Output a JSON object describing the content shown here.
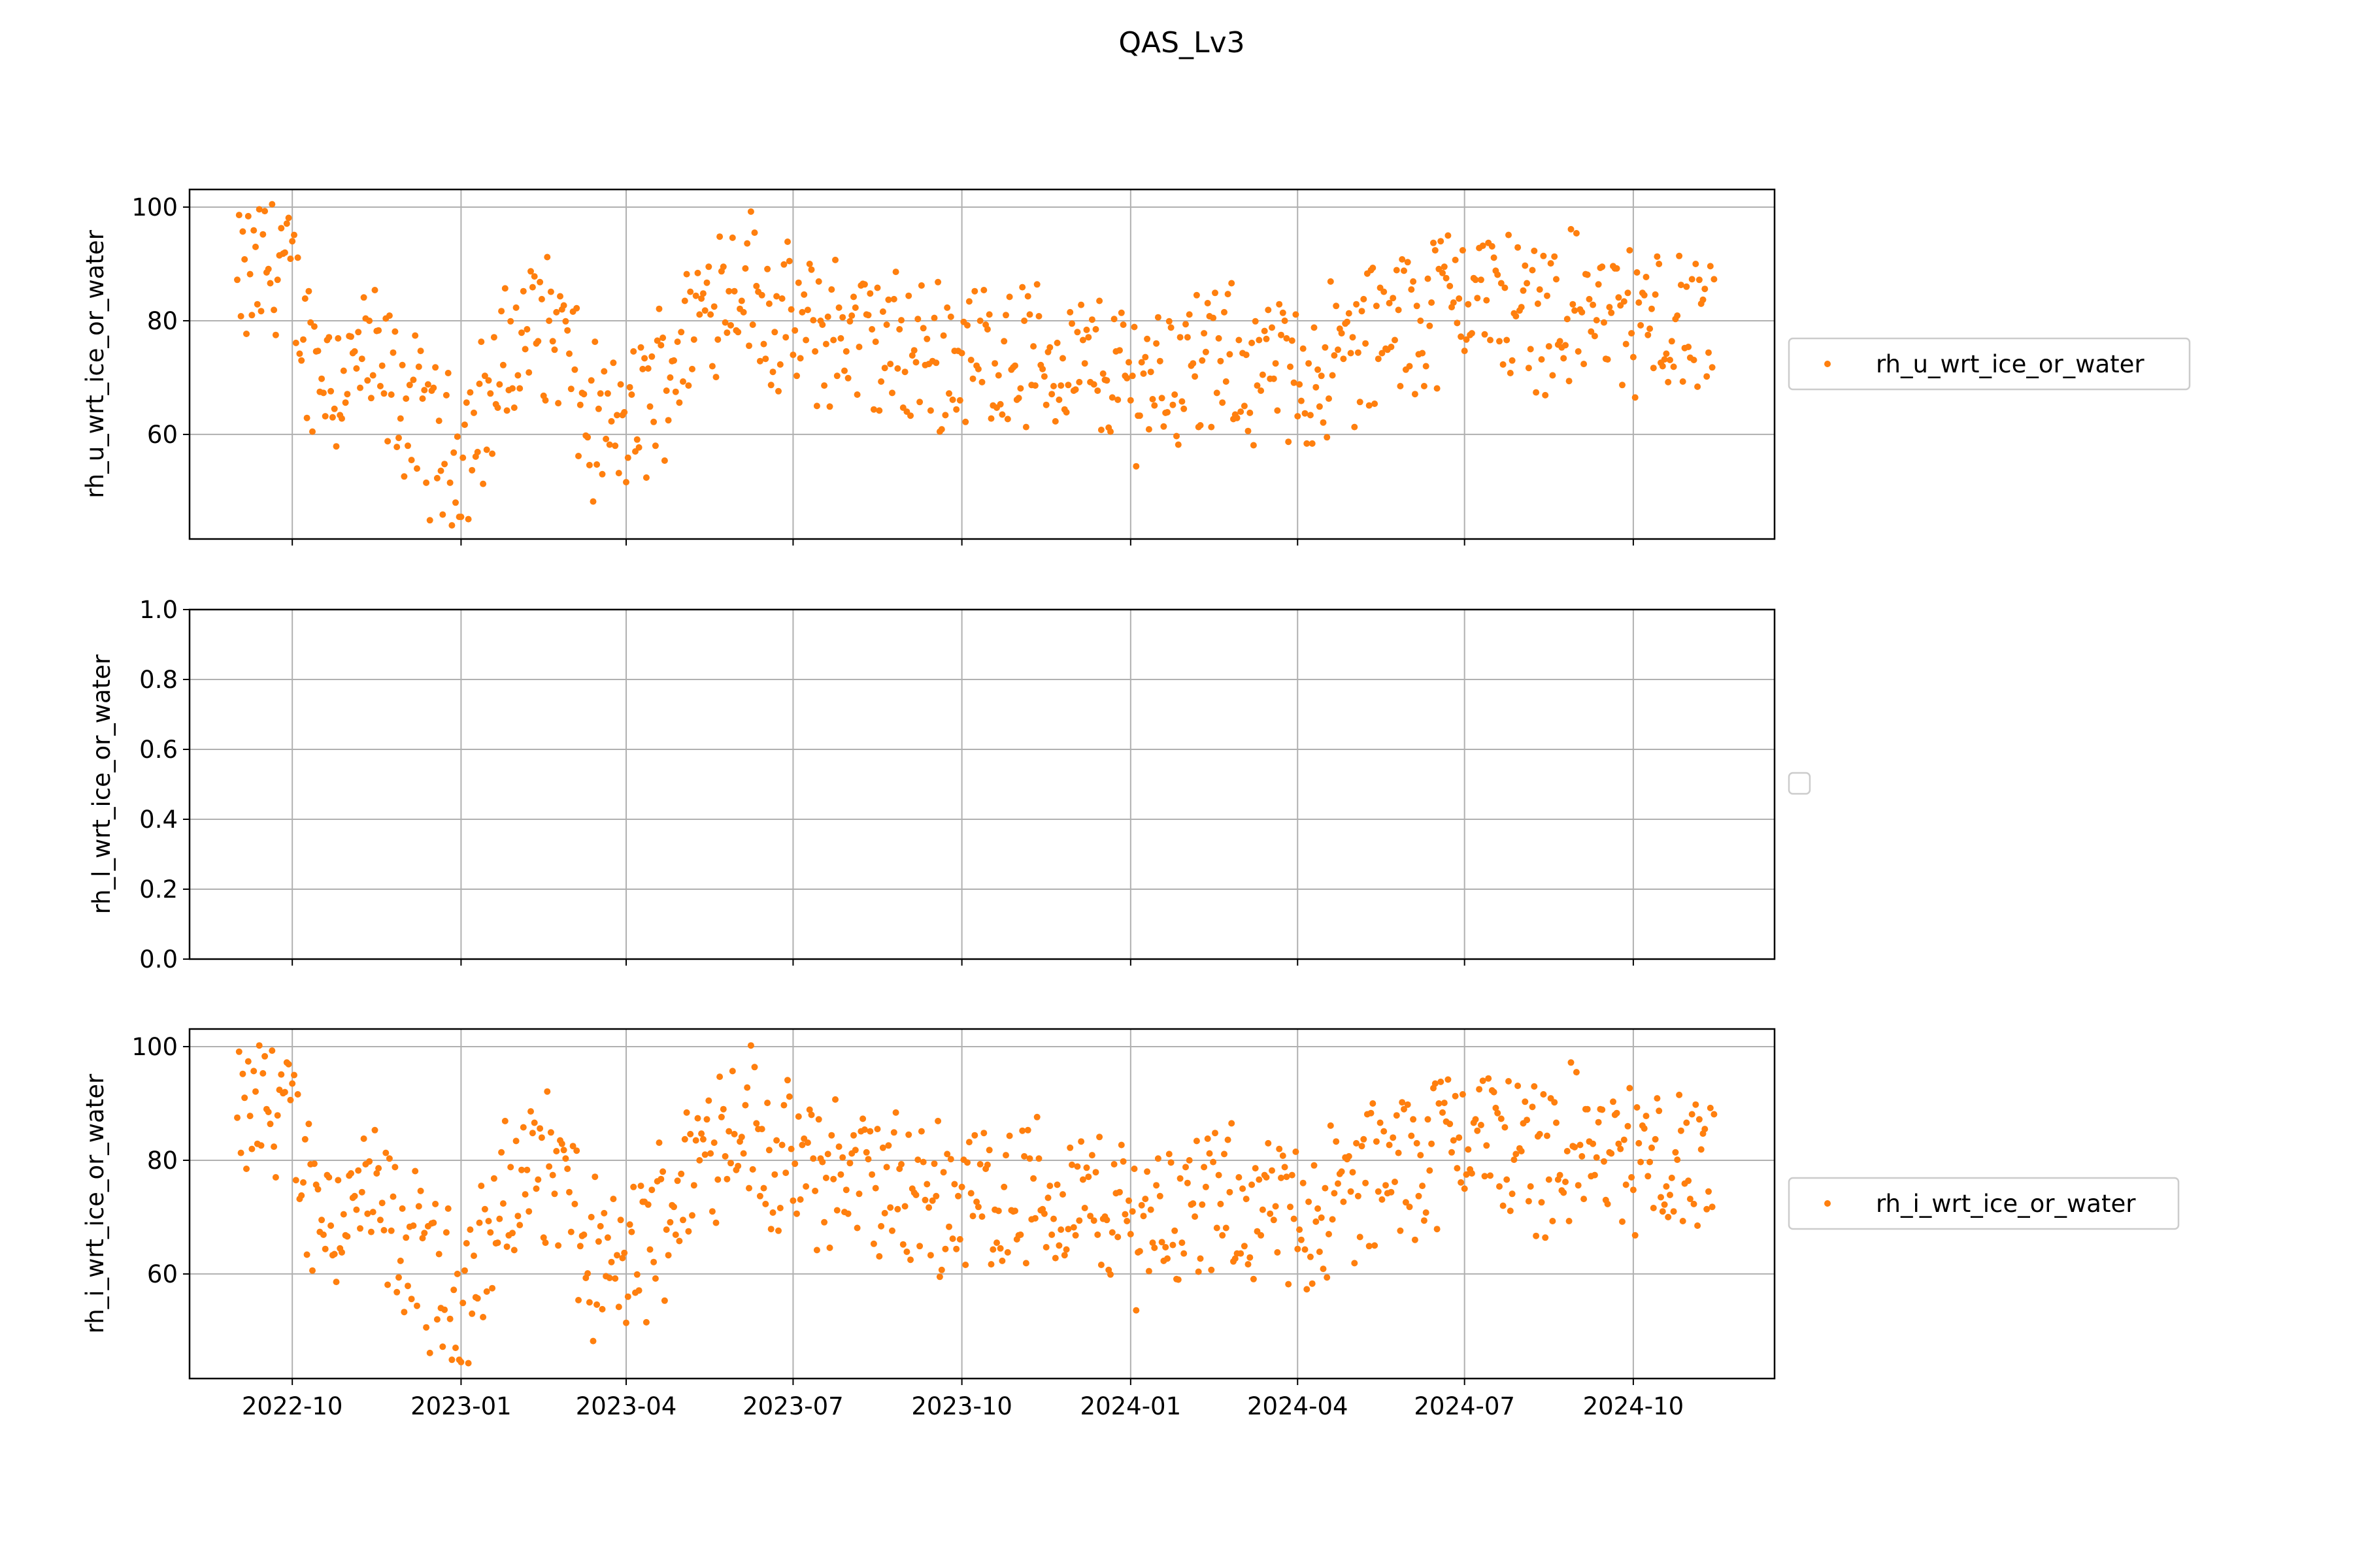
{
  "title": "QAS_Lv3",
  "marker_color": "#ff7f0e",
  "chart_data": [
    {
      "type": "scatter",
      "ylabel": "rh_u_wrt_ice_or_water",
      "legend": [
        "rh_u_wrt_ice_or_water"
      ],
      "legend_placement": "right",
      "grid": true,
      "xlim": [
        "2022-08-06",
        "2024-12-17"
      ],
      "ylim": [
        41.6,
        103.1
      ],
      "yticks": [
        60,
        80,
        100
      ],
      "xticks": [
        "2022-10-01",
        "2023-01-01",
        "2023-04-01",
        "2023-07-01",
        "2023-10-01",
        "2024-01-01",
        "2024-04-01",
        "2024-07-01",
        "2024-10-01"
      ],
      "xtick_labels": [
        "2022-10",
        "2023-01",
        "2023-04",
        "2023-07",
        "2023-10",
        "2024-01",
        "2024-04",
        "2024-07",
        "2024-10"
      ],
      "series": [
        {
          "name": "rh_u_wrt_ice_or_water",
          "x": [],
          "y": []
        }
      ]
    },
    {
      "type": "scatter",
      "ylabel": "rh_l_wrt_ice_or_water",
      "legend": [],
      "legend_placement": "right",
      "grid": true,
      "xlim": [
        "2022-08-06",
        "2024-12-17"
      ],
      "ylim": [
        0.0,
        1.0
      ],
      "yticks": [
        0.0,
        0.2,
        0.4,
        0.6,
        0.8,
        1.0
      ],
      "ytick_labels": [
        "0.0",
        "0.2",
        "0.4",
        "0.6",
        "0.8",
        "1.0"
      ],
      "xticks": [
        "2022-10-01",
        "2023-01-01",
        "2023-04-01",
        "2023-07-01",
        "2023-10-01",
        "2024-01-01",
        "2024-04-01",
        "2024-07-01",
        "2024-10-01"
      ],
      "series": []
    },
    {
      "type": "scatter",
      "ylabel": "rh_i_wrt_ice_or_water",
      "legend": [
        "rh_i_wrt_ice_or_water"
      ],
      "legend_placement": "right",
      "grid": true,
      "xlim": [
        "2022-08-06",
        "2024-12-17"
      ],
      "ylim": [
        41.6,
        103.1
      ],
      "yticks": [
        60,
        80,
        100
      ],
      "xticks": [
        "2022-10-01",
        "2023-01-01",
        "2023-04-01",
        "2023-07-01",
        "2023-10-01",
        "2024-01-01",
        "2024-04-01",
        "2024-07-01",
        "2024-10-01"
      ],
      "xtick_labels": [
        "2022-10",
        "2023-01",
        "2023-04",
        "2023-07",
        "2023-10",
        "2024-01",
        "2024-04",
        "2024-07",
        "2024-10"
      ],
      "series": [
        {
          "name": "rh_i_wrt_ice_or_water",
          "x": [],
          "y": []
        }
      ]
    }
  ],
  "trend": {
    "date_range": [
      "2022-09-01",
      "2024-11-14"
    ],
    "anchors": [
      [
        "2022-09-01",
        85
      ],
      [
        "2022-09-25",
        92
      ],
      [
        "2022-10-10",
        75
      ],
      [
        "2022-10-25",
        70
      ],
      [
        "2022-11-10",
        73
      ],
      [
        "2022-11-25",
        68
      ],
      [
        "2022-12-15",
        60
      ],
      [
        "2022-12-28",
        56
      ],
      [
        "2023-01-10",
        62
      ],
      [
        "2023-01-25",
        72
      ],
      [
        "2023-02-10",
        80
      ],
      [
        "2023-02-25",
        78
      ],
      [
        "2023-03-10",
        62
      ],
      [
        "2023-03-25",
        60
      ],
      [
        "2023-04-05",
        62
      ],
      [
        "2023-04-20",
        70
      ],
      [
        "2023-05-05",
        78
      ],
      [
        "2023-05-20",
        86
      ],
      [
        "2023-06-05",
        88
      ],
      [
        "2023-06-20",
        80
      ],
      [
        "2023-07-05",
        78
      ],
      [
        "2023-08-01",
        78
      ],
      [
        "2023-09-01",
        74
      ],
      [
        "2023-10-01",
        74
      ],
      [
        "2023-11-01",
        74
      ],
      [
        "2023-12-01",
        72
      ],
      [
        "2024-01-01",
        70
      ],
      [
        "2024-02-01",
        72
      ],
      [
        "2024-03-01",
        72
      ],
      [
        "2024-04-01",
        70
      ],
      [
        "2024-05-01",
        75
      ],
      [
        "2024-06-01",
        80
      ],
      [
        "2024-07-01",
        86
      ],
      [
        "2024-08-01",
        82
      ],
      [
        "2024-09-01",
        82
      ],
      [
        "2024-10-01",
        80
      ],
      [
        "2024-11-14",
        78
      ]
    ],
    "spread": 12,
    "min": 44,
    "max": 100.5
  }
}
